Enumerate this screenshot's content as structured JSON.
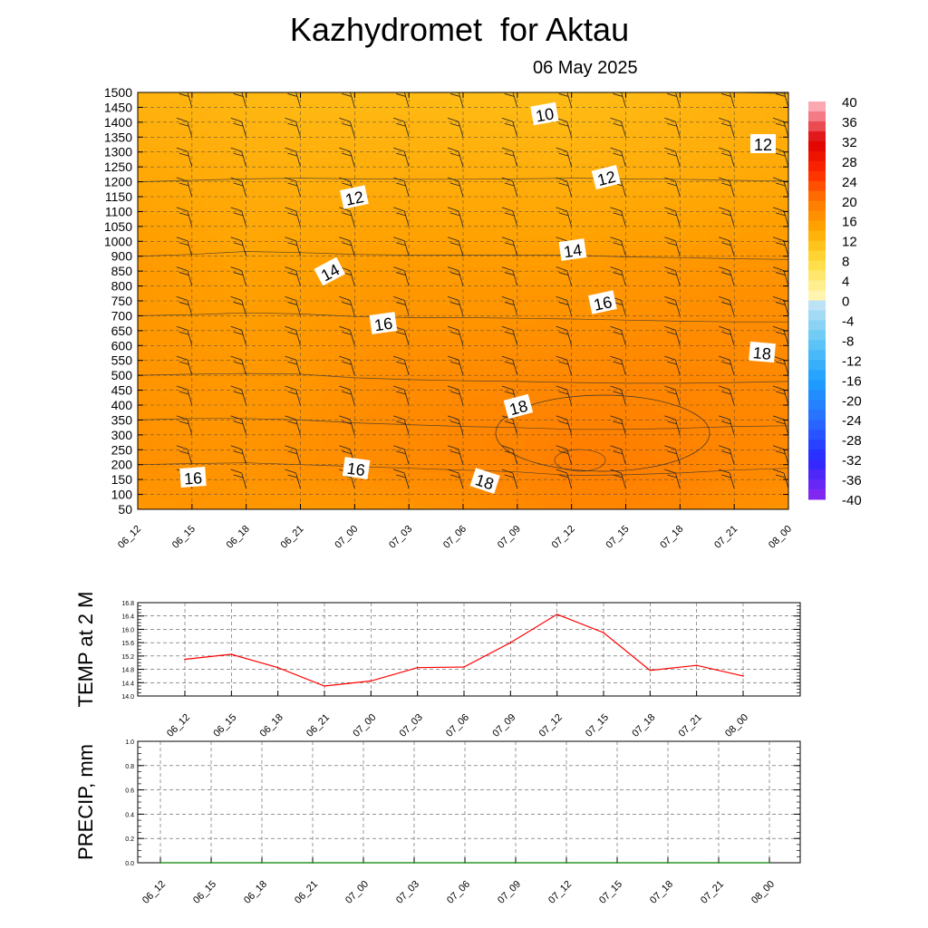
{
  "header": {
    "title": "Kazhydromet  for Aktau",
    "date": "06 May 2025"
  },
  "colors": {
    "field_low": "#ffc21a",
    "field_mid": "#ffa000",
    "field_high": "#ff7a00",
    "temp_line": "#ff0000",
    "precip_line": "#008000"
  },
  "chart_data": [
    {
      "type": "heatmap",
      "title": "Kazhydromet  for Aktau",
      "subtitle": "06 May 2025",
      "x": [
        "06_12",
        "06_15",
        "06_18",
        "06_21",
        "07_00",
        "07_03",
        "07_06",
        "07_09",
        "07_12",
        "07_15",
        "07_18",
        "07_21",
        "08_00"
      ],
      "y_ticks": [
        50,
        100,
        150,
        200,
        250,
        300,
        350,
        400,
        450,
        500,
        550,
        600,
        650,
        700,
        750,
        800,
        850,
        900,
        1000,
        1050,
        1100,
        1150,
        1200,
        1250,
        1300,
        1350,
        1400,
        1450,
        1500
      ],
      "temperature_field_levels": [
        50,
        200,
        350,
        500,
        700,
        900,
        1200,
        1500
      ],
      "temperature_field": [
        [
          15.5,
          15.8,
          15.5,
          15.2,
          15.5,
          16.0,
          16.5,
          17.5,
          18.0,
          18.2,
          17.8,
          16.8,
          16.0
        ],
        [
          16.5,
          16.2,
          16.0,
          16.5,
          17.0,
          17.5,
          18.0,
          18.5,
          19.5,
          19.3,
          18.8,
          18.0,
          17.5
        ],
        [
          16.2,
          15.8,
          15.8,
          16.2,
          17.0,
          17.5,
          18.0,
          18.3,
          18.8,
          18.8,
          18.5,
          18.0,
          17.8
        ],
        [
          15.8,
          15.5,
          15.3,
          15.5,
          16.5,
          17.0,
          17.3,
          17.5,
          17.8,
          18.0,
          18.0,
          17.8,
          17.5
        ],
        [
          15.3,
          15.0,
          14.5,
          14.8,
          15.5,
          15.8,
          15.8,
          16.0,
          16.2,
          16.5,
          16.8,
          17.0,
          17.0
        ],
        [
          14.8,
          14.3,
          13.5,
          13.8,
          14.3,
          14.5,
          14.5,
          14.5,
          14.5,
          15.0,
          15.2,
          15.5,
          15.7
        ],
        [
          13.0,
          12.6,
          12.2,
          12.0,
          12.2,
          12.3,
          12.3,
          12.2,
          12.0,
          12.2,
          12.3,
          12.6,
          12.8
        ],
        [
          11.2,
          11.0,
          10.5,
          10.3,
          10.2,
          10.2,
          10.0,
          9.8,
          9.8,
          10.2,
          10.8,
          11.2,
          11.5
        ]
      ],
      "contour_labels": [
        "10",
        "12",
        "12",
        "12",
        "14",
        "14",
        "16",
        "16",
        "16",
        "16",
        "18",
        "18",
        "18"
      ],
      "colorbar": {
        "ticks": [
          "40",
          "36",
          "32",
          "28",
          "24",
          "20",
          "16",
          "12",
          "8",
          "4",
          "0",
          "-4",
          "-8",
          "-12",
          "-16",
          "-20",
          "-24",
          "-28",
          "-32",
          "-36",
          "-40"
        ],
        "range": [
          -40,
          40
        ]
      },
      "grid": true
    },
    {
      "type": "line",
      "ylabel": "TEMP at 2 M",
      "x": [
        "06_12",
        "06_15",
        "06_18",
        "06_21",
        "07_00",
        "07_03",
        "07_06",
        "07_09",
        "07_12",
        "07_15",
        "07_18",
        "07_21",
        "08_00"
      ],
      "values": [
        15.1,
        15.25,
        14.85,
        14.3,
        14.45,
        14.85,
        14.87,
        15.6,
        16.45,
        15.9,
        14.77,
        14.92,
        14.6
      ],
      "ylim": [
        14.0,
        16.8
      ],
      "y_ticks": [
        "16.8",
        "16.4",
        "16.0",
        "15.6",
        "15.2",
        "14.8",
        "14.4",
        "14.0"
      ],
      "grid": true
    },
    {
      "type": "line",
      "ylabel": "PRECIP, mm",
      "x": [
        "06_12",
        "06_15",
        "06_18",
        "06_21",
        "07_00",
        "07_03",
        "07_06",
        "07_09",
        "07_12",
        "07_15",
        "07_18",
        "07_21",
        "08_00"
      ],
      "values": [
        0,
        0,
        0,
        0,
        0,
        0,
        0,
        0,
        0,
        0,
        0,
        0,
        0
      ],
      "ylim": [
        0.0,
        1.0
      ],
      "y_ticks": [
        "1.0",
        "0.8",
        "0.6",
        "0.4",
        "0.2",
        "0.0"
      ],
      "grid": true
    }
  ]
}
